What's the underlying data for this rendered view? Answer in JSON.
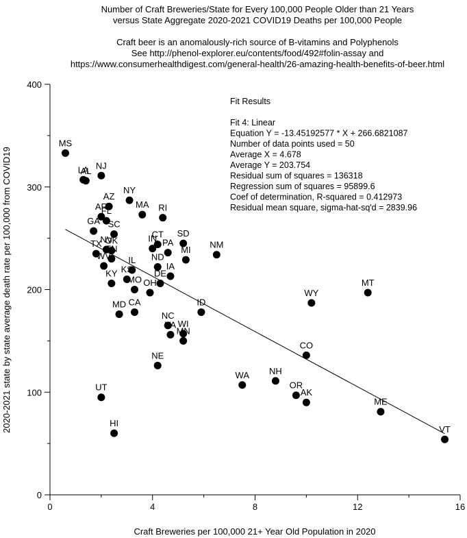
{
  "chart_data": {
    "type": "scatter",
    "title_lines": [
      "Number of Craft Breweries/State for Every 100,000 People Older than 21 Years",
      "versus State Aggregate 2020-2021 COVID19 Deaths per 100,000 People",
      "",
      "Craft beer is an anomalously-rich source of B-vitamins and Polyphenols",
      "See http://phenol-explorer.eu/contents/food/492#folin-assay and",
      "https://www.consumerhealthdigest.com/general-health/26-amazing-health-benefits-of-beer.html"
    ],
    "xlabel": "Craft Breweries per 100,000 21+ Year Old Population in 2020",
    "ylabel": "2020-2021 state by state average death rate per 100,000 from COVID19",
    "xlim": [
      0,
      16
    ],
    "ylim": [
      0,
      400
    ],
    "xticks": [
      "0",
      "4",
      "8",
      "12",
      "16"
    ],
    "yticks": [
      "0",
      "100",
      "200",
      "300",
      "400"
    ],
    "grid": false,
    "fit_results": [
      "Fit Results",
      "",
      "Fit 4: Linear",
      "Equation Y = -13.45192577 * X + 266.6821087",
      "Number of data points used = 50",
      "Average X = 4.678",
      "Average Y = 203.754",
      "Residual sum of squares = 136318",
      "Regression sum of squares = 95899.6",
      "Coef of determination, R-squared = 0.412973",
      "Residual mean square, sigma-hat-sq'd = 2839.96"
    ],
    "fit_line": {
      "slope": -13.45192577,
      "intercept": 266.6821087,
      "x_range": [
        0.6,
        15.4
      ]
    },
    "points": [
      {
        "label": "MS",
        "x": 0.6,
        "y": 333
      },
      {
        "label": "LA",
        "x": 1.3,
        "y": 307
      },
      {
        "label": "AL",
        "x": 1.4,
        "y": 306
      },
      {
        "label": "NJ",
        "x": 2.0,
        "y": 311
      },
      {
        "label": "AZ",
        "x": 2.3,
        "y": 281
      },
      {
        "label": "AR",
        "x": 2.0,
        "y": 271
      },
      {
        "label": "FL",
        "x": 2.2,
        "y": 267
      },
      {
        "label": "GA",
        "x": 1.7,
        "y": 257
      },
      {
        "label": "SC",
        "x": 2.5,
        "y": 254
      },
      {
        "label": "NY",
        "x": 3.1,
        "y": 287
      },
      {
        "label": "MA",
        "x": 3.6,
        "y": 273
      },
      {
        "label": "RI",
        "x": 4.4,
        "y": 270
      },
      {
        "label": "NV",
        "x": 2.2,
        "y": 239
      },
      {
        "label": "OK",
        "x": 2.4,
        "y": 238
      },
      {
        "label": "TX",
        "x": 1.8,
        "y": 235
      },
      {
        "label": "TN",
        "x": 2.4,
        "y": 230
      },
      {
        "label": "WV",
        "x": 2.1,
        "y": 223
      },
      {
        "label": "IN",
        "x": 4.0,
        "y": 240
      },
      {
        "label": "CT",
        "x": 4.2,
        "y": 244
      },
      {
        "label": "PA",
        "x": 4.6,
        "y": 236
      },
      {
        "label": "SD",
        "x": 5.2,
        "y": 245
      },
      {
        "label": "MI",
        "x": 5.3,
        "y": 229
      },
      {
        "label": "NM",
        "x": 6.5,
        "y": 234
      },
      {
        "label": "ND",
        "x": 4.2,
        "y": 222
      },
      {
        "label": "IL",
        "x": 3.2,
        "y": 219
      },
      {
        "label": "KS",
        "x": 3.0,
        "y": 210
      },
      {
        "label": "IA",
        "x": 4.7,
        "y": 213
      },
      {
        "label": "DE",
        "x": 4.3,
        "y": 206
      },
      {
        "label": "KY",
        "x": 2.4,
        "y": 206
      },
      {
        "label": "MO",
        "x": 3.3,
        "y": 200
      },
      {
        "label": "OH",
        "x": 3.9,
        "y": 197
      },
      {
        "label": "MD",
        "x": 2.7,
        "y": 176
      },
      {
        "label": "CA",
        "x": 3.3,
        "y": 178
      },
      {
        "label": "ID",
        "x": 5.9,
        "y": 178
      },
      {
        "label": "WY",
        "x": 10.2,
        "y": 187
      },
      {
        "label": "MT",
        "x": 12.4,
        "y": 197
      },
      {
        "label": "NC",
        "x": 4.6,
        "y": 165
      },
      {
        "label": "VA",
        "x": 4.7,
        "y": 156
      },
      {
        "label": "WI",
        "x": 5.2,
        "y": 157
      },
      {
        "label": "MN",
        "x": 5.2,
        "y": 150
      },
      {
        "label": "CO",
        "x": 10.0,
        "y": 136
      },
      {
        "label": "NE",
        "x": 4.2,
        "y": 126
      },
      {
        "label": "WA",
        "x": 7.5,
        "y": 107
      },
      {
        "label": "NH",
        "x": 8.8,
        "y": 111
      },
      {
        "label": "OR",
        "x": 9.6,
        "y": 97
      },
      {
        "label": "AK",
        "x": 10.0,
        "y": 90
      },
      {
        "label": "ME",
        "x": 12.9,
        "y": 81
      },
      {
        "label": "VT",
        "x": 15.4,
        "y": 54
      },
      {
        "label": "UT",
        "x": 2.0,
        "y": 95
      },
      {
        "label": "HI",
        "x": 2.5,
        "y": 60
      }
    ]
  }
}
